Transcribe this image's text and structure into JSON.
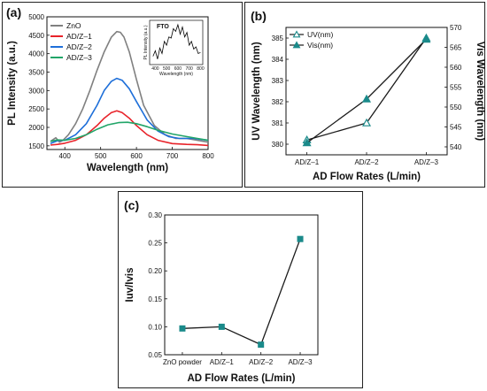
{
  "chart_data": [
    {
      "panel": "(a)",
      "type": "line",
      "xlabel": "Wavelength (nm)",
      "ylabel": "PL Intensity (a.u.)",
      "xlim": [
        350,
        800
      ],
      "ylim": [
        1400,
        5000
      ],
      "xticks": [
        "400",
        "500",
        "600",
        "700",
        "800"
      ],
      "yticks": [
        "1500",
        "2000",
        "2500",
        "3000",
        "3500",
        "4000",
        "4500",
        "5000"
      ],
      "legend": "top-left",
      "series": [
        {
          "name": "ZnO",
          "color": "#808080",
          "x": [
            360,
            375,
            385,
            395,
            410,
            430,
            450,
            470,
            490,
            510,
            530,
            545,
            555,
            565,
            580,
            600,
            620,
            650,
            680,
            710,
            740,
            770,
            800
          ],
          "y": [
            1620,
            1720,
            1600,
            1650,
            1800,
            2100,
            2500,
            3000,
            3550,
            4050,
            4450,
            4600,
            4580,
            4450,
            4050,
            3300,
            2600,
            2050,
            1800,
            1700,
            1700,
            1650,
            1600
          ]
        },
        {
          "name": "AD/Z–1",
          "color": "#e8232a",
          "x": [
            360,
            380,
            400,
            430,
            460,
            490,
            510,
            530,
            545,
            560,
            580,
            600,
            630,
            660,
            700,
            740,
            770,
            800
          ],
          "y": [
            1520,
            1540,
            1570,
            1650,
            1800,
            2050,
            2250,
            2400,
            2450,
            2400,
            2250,
            2050,
            1800,
            1650,
            1560,
            1540,
            1530,
            1510
          ]
        },
        {
          "name": "AD/Z–2",
          "color": "#1e6fd9",
          "x": [
            360,
            380,
            400,
            430,
            460,
            490,
            510,
            530,
            545,
            560,
            580,
            600,
            630,
            660,
            690,
            720,
            760,
            800
          ],
          "y": [
            1560,
            1640,
            1650,
            1800,
            2100,
            2600,
            3000,
            3250,
            3330,
            3280,
            3050,
            2700,
            2200,
            1900,
            1750,
            1700,
            1700,
            1650
          ]
        },
        {
          "name": "AD/Z–3",
          "color": "#21a568",
          "x": [
            360,
            380,
            400,
            430,
            460,
            490,
            520,
            550,
            575,
            600,
            630,
            660,
            700,
            740,
            770,
            800
          ],
          "y": [
            1620,
            1660,
            1650,
            1700,
            1800,
            1950,
            2070,
            2130,
            2140,
            2100,
            2020,
            1920,
            1820,
            1750,
            1700,
            1650
          ]
        }
      ],
      "inset": {
        "label": "FTO",
        "xlabel": "Wavelength (nm)",
        "ylabel": "PL Intensity (a.u.)",
        "xticks": [
          "400",
          "500",
          "600",
          "700",
          "800"
        ],
        "color": "#000000",
        "x": [
          380,
          400,
          420,
          440,
          460,
          480,
          500,
          520,
          540,
          560,
          580,
          600,
          620,
          640,
          660,
          680,
          700,
          720,
          740,
          760,
          780,
          800
        ],
        "y": [
          0.35,
          0.45,
          0.3,
          0.5,
          0.4,
          0.62,
          0.55,
          0.7,
          0.68,
          0.85,
          0.8,
          0.92,
          0.75,
          0.88,
          0.7,
          0.78,
          0.55,
          0.62,
          0.48,
          0.52,
          0.4,
          0.42
        ]
      }
    },
    {
      "panel": "(b)",
      "type": "line",
      "categories": [
        "AD/Z–1",
        "AD/Z–2",
        "AD/Z–3"
      ],
      "xlabel": "AD Flow Rates (L/min)",
      "ylabel": "UV Wavelength (nm)",
      "ylabel_right": "Vis Wavelength (nm)",
      "ylim": [
        379.5,
        385.5
      ],
      "ylim_right": [
        538,
        570
      ],
      "yticks": [
        "380",
        "381",
        "382",
        "383",
        "384",
        "385"
      ],
      "yticks_right": [
        "540",
        "545",
        "550",
        "555",
        "560",
        "565",
        "570"
      ],
      "legend": "top-left",
      "series": [
        {
          "name": "UV(nm)",
          "axis": "left",
          "marker": "hollow-triangle",
          "color": "#1a1a1a",
          "marker_color": "#1a8a8a",
          "values": [
            380.2,
            381.0,
            385.0
          ]
        },
        {
          "name": "Vis(nm)",
          "axis": "right",
          "marker": "filled-triangle",
          "color": "#1a1a1a",
          "marker_color": "#1a8a8a",
          "values": [
            541.0,
            552.0,
            567.0
          ]
        }
      ]
    },
    {
      "panel": "(c)",
      "type": "line",
      "categories": [
        "ZnO powder",
        "AD/Z–1",
        "AD/Z–2",
        "AD/Z–3"
      ],
      "xlabel": "AD Flow Rates (L/min)",
      "ylabel": "Iuv/Ivis",
      "ylim": [
        0.05,
        0.3
      ],
      "yticks": [
        "0.05",
        "0.10",
        "0.15",
        "0.20",
        "0.25",
        "0.30"
      ],
      "series": [
        {
          "marker": "square",
          "color": "#1a1a1a",
          "marker_color": "#1a8a8a",
          "values": [
            0.097,
            0.1,
            0.068,
            0.257
          ]
        }
      ]
    }
  ]
}
